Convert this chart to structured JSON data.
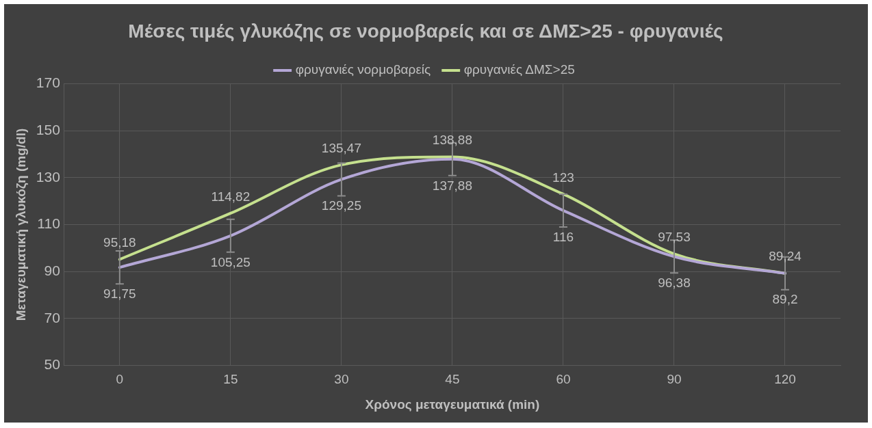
{
  "chart_data": {
    "type": "line",
    "title": "Μέσες τιμές γλυκόζης σε νορμοβαρείς και σε ΔΜΣ>25 - φρυγανιές",
    "xlabel": "Χρόνος μεταγευματικά (min)",
    "ylabel": "Μεταγευματική γλυκόζη (mg/dl)",
    "categories": [
      "0",
      "15",
      "30",
      "45",
      "60",
      "90",
      "120"
    ],
    "series": [
      {
        "name": "φρυγανιές νορμοβαρείς",
        "color": "#b4a7d6",
        "values": [
          91.75,
          105.25,
          129.25,
          137.88,
          116,
          96.38,
          89.24
        ],
        "value_labels": [
          "91,75",
          "105,25",
          "129,25",
          "137,88",
          "116",
          "96,38",
          "89,24"
        ],
        "errors": [
          7,
          7,
          7,
          7,
          7,
          7,
          7
        ]
      },
      {
        "name": "φρυγανιές ΔΜΣ>25",
        "color": "#c5e08e",
        "values": [
          95.18,
          114.82,
          135.47,
          138.88,
          123,
          97.53,
          89.2
        ],
        "value_labels": [
          "95,18",
          "114,82",
          "135,47",
          "138,88",
          "123",
          "97,53",
          "89,2"
        ]
      }
    ],
    "ylim": [
      50,
      170
    ],
    "yticks": [
      50,
      70,
      90,
      110,
      130,
      150,
      170
    ],
    "grid": true,
    "legend": "top",
    "marker": "none",
    "line_style": "solid"
  }
}
